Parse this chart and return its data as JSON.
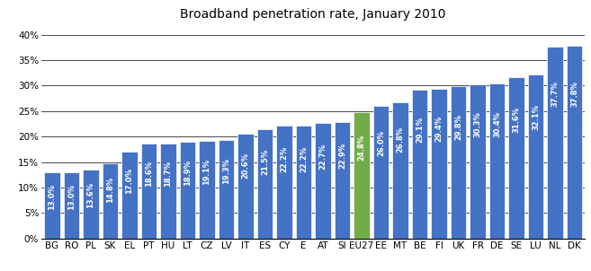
{
  "title": "Broadband penetration rate, January 2010",
  "categories": [
    "BG",
    "RO",
    "PL",
    "SK",
    "EL",
    "PT",
    "HU",
    "LT",
    "CZ",
    "LV",
    "IT",
    "ES",
    "CY",
    "E",
    "AT",
    "SI",
    "EU27",
    "EE",
    "MT",
    "BE",
    "FI",
    "UK",
    "FR",
    "DE",
    "SE",
    "LU",
    "NL",
    "DK"
  ],
  "values": [
    13.0,
    13.0,
    13.6,
    14.8,
    17.0,
    18.6,
    18.7,
    18.9,
    19.1,
    19.3,
    20.6,
    21.5,
    22.2,
    22.2,
    22.7,
    22.9,
    24.8,
    26.0,
    26.8,
    29.1,
    29.4,
    29.8,
    30.3,
    30.4,
    31.6,
    32.1,
    37.7,
    37.8
  ],
  "labels": [
    "13.0%",
    "13.0%",
    "13.6%",
    "14.8%",
    "17.0%",
    "18.6%",
    "18.7%",
    "18.9%",
    "19.1%",
    "19.3%",
    "20.6%",
    "21.5%",
    "22.2%",
    "22.2%",
    "22.7%",
    "22.9%",
    "24.8%",
    "26.0%",
    "26.8%",
    "29.1%",
    "29.4%",
    "29.8%",
    "30.3%",
    "30.4%",
    "31.6%",
    "32.1%",
    "37.7%",
    "37.8%"
  ],
  "bar_colors": [
    "#4472C4",
    "#4472C4",
    "#4472C4",
    "#4472C4",
    "#4472C4",
    "#4472C4",
    "#4472C4",
    "#4472C4",
    "#4472C4",
    "#4472C4",
    "#4472C4",
    "#4472C4",
    "#4472C4",
    "#4472C4",
    "#4472C4",
    "#4472C4",
    "#70AD47",
    "#4472C4",
    "#4472C4",
    "#4472C4",
    "#4472C4",
    "#4472C4",
    "#4472C4",
    "#4472C4",
    "#4472C4",
    "#4472C4",
    "#4472C4",
    "#4472C4"
  ],
  "ylim": [
    0,
    42
  ],
  "yticks": [
    0,
    5,
    10,
    15,
    20,
    25,
    30,
    35,
    40
  ],
  "ytick_labels": [
    "0%",
    "5%",
    "10%",
    "15%",
    "20%",
    "25%",
    "30%",
    "35%",
    "40%"
  ],
  "background_color": "#FFFFFF",
  "grid_color": "#000000",
  "label_color": "#FFFFFF",
  "title_fontsize": 10,
  "label_fontsize": 6.0,
  "tick_fontsize": 7.5
}
